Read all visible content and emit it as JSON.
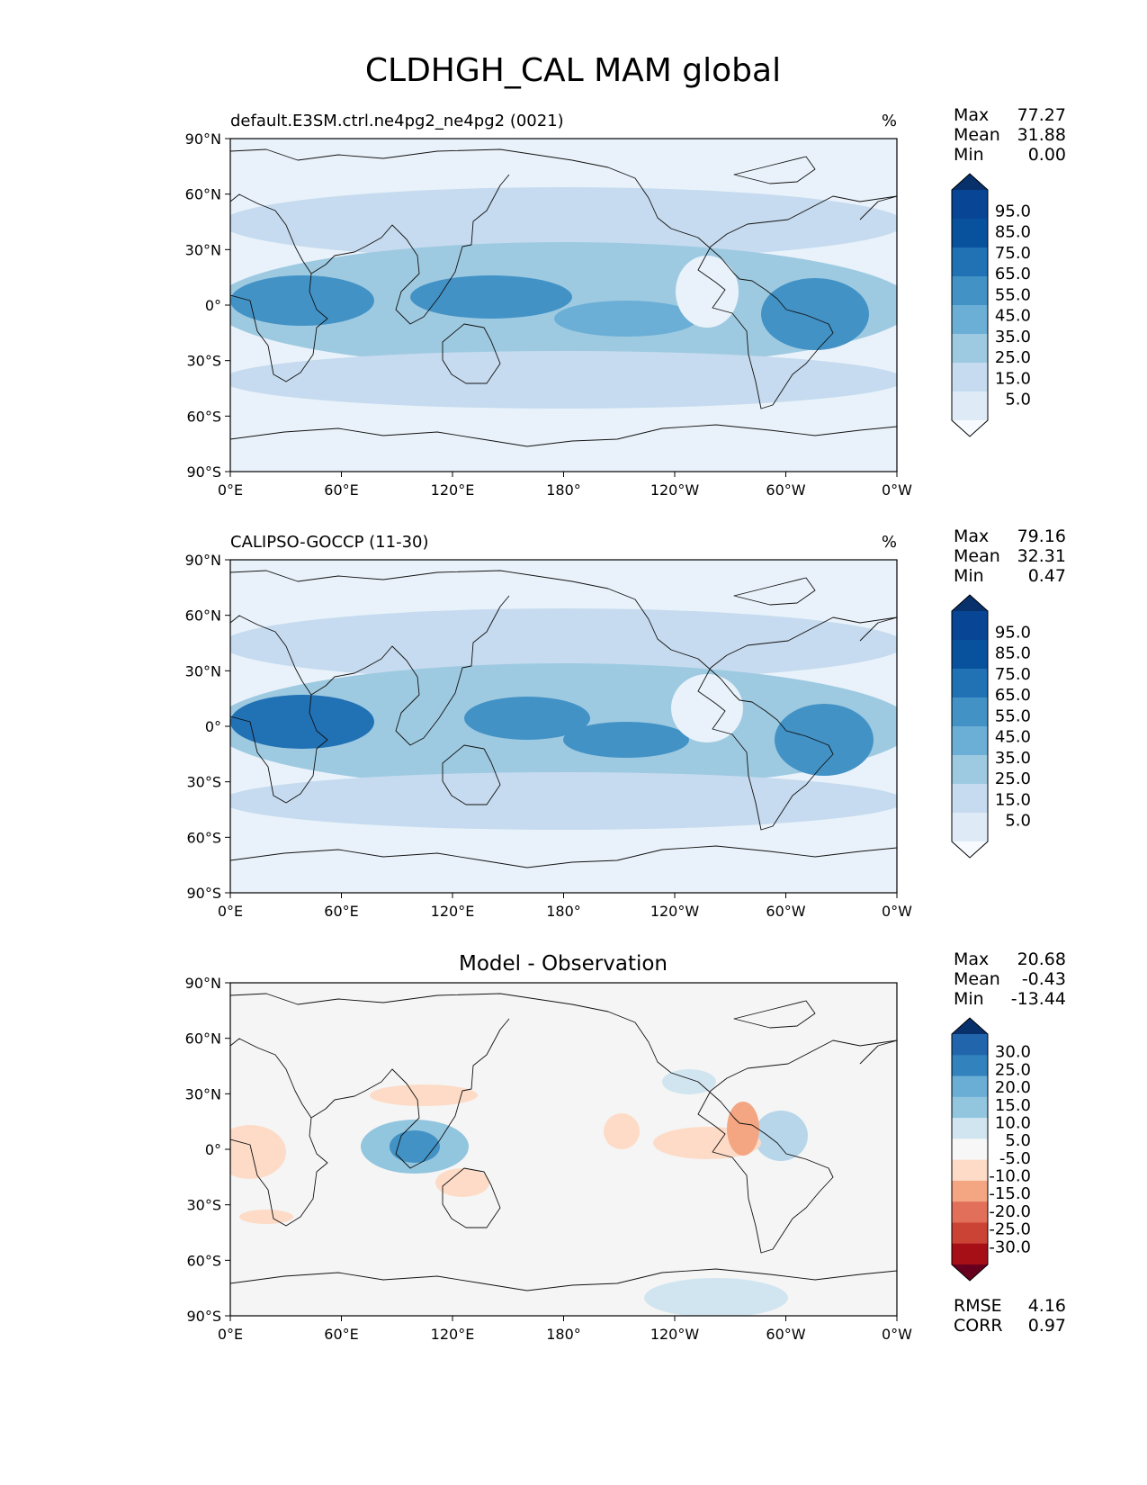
{
  "figure_title": "CLDHGH_CAL MAM global",
  "chart_data": [
    {
      "type": "heatmap",
      "projection": "global map (plate carree)",
      "title_left": "default.E3SM.ctrl.ne4pg2_ne4pg2 (0021)",
      "title_right": "%",
      "x_ticks": [
        "0°E",
        "60°E",
        "120°E",
        "180°",
        "120°W",
        "60°W",
        "0°W"
      ],
      "y_ticks": [
        "90°N",
        "60°N",
        "30°N",
        "0°",
        "30°S",
        "60°S",
        "90°S"
      ],
      "stats": [
        {
          "label": "Max",
          "value": "77.27"
        },
        {
          "label": "Mean",
          "value": "31.88"
        },
        {
          "label": "Min",
          "value": "0.00"
        }
      ],
      "colorbar": {
        "colors": [
          "#f7fbff",
          "#deebf7",
          "#c6dbef",
          "#9ecae1",
          "#6baed6",
          "#4292c6",
          "#2171b5",
          "#08519c",
          "#084594",
          "#08306b"
        ],
        "labels": [
          "95.0",
          "85.0",
          "75.0",
          "65.0",
          "55.0",
          "45.0",
          "35.0",
          "25.0",
          "15.0",
          "5.0"
        ]
      }
    },
    {
      "type": "heatmap",
      "projection": "global map (plate carree)",
      "title_left": "CALIPSO-GOCCP (11-30)",
      "title_right": "%",
      "x_ticks": [
        "0°E",
        "60°E",
        "120°E",
        "180°",
        "120°W",
        "60°W",
        "0°W"
      ],
      "y_ticks": [
        "90°N",
        "60°N",
        "30°N",
        "0°",
        "30°S",
        "60°S",
        "90°S"
      ],
      "stats": [
        {
          "label": "Max",
          "value": "79.16"
        },
        {
          "label": "Mean",
          "value": "32.31"
        },
        {
          "label": "Min",
          "value": "0.47"
        }
      ],
      "colorbar": {
        "colors": [
          "#f7fbff",
          "#deebf7",
          "#c6dbef",
          "#9ecae1",
          "#6baed6",
          "#4292c6",
          "#2171b5",
          "#08519c",
          "#084594",
          "#08306b"
        ],
        "labels": [
          "95.0",
          "85.0",
          "75.0",
          "65.0",
          "55.0",
          "45.0",
          "35.0",
          "25.0",
          "15.0",
          "5.0"
        ]
      }
    },
    {
      "type": "heatmap",
      "projection": "global map (plate carree)",
      "title_center": "Model - Observation",
      "x_ticks": [
        "0°E",
        "60°E",
        "120°E",
        "180°",
        "120°W",
        "60°W",
        "0°W"
      ],
      "y_ticks": [
        "90°N",
        "60°N",
        "30°N",
        "0°",
        "30°S",
        "60°S",
        "90°S"
      ],
      "stats": [
        {
          "label": "Max",
          "value": "20.68"
        },
        {
          "label": "Mean",
          "value": "-0.43"
        },
        {
          "label": "Min",
          "value": "-13.44"
        }
      ],
      "metrics": [
        {
          "label": "RMSE",
          "value": "4.16"
        },
        {
          "label": "CORR",
          "value": "0.97"
        }
      ],
      "colorbar": {
        "colors": [
          "#67001f",
          "#a50f15",
          "#cb4335",
          "#e26f5a",
          "#f4a582",
          "#fddbc7",
          "#f7f7f7",
          "#d1e5f0",
          "#92c5de",
          "#6aaed6",
          "#3182bd",
          "#2166ac",
          "#08306b"
        ],
        "labels": [
          "30.0",
          "25.0",
          "20.0",
          "15.0",
          "10.0",
          "5.0",
          "-5.0",
          "-10.0",
          "-15.0",
          "-20.0",
          "-25.0",
          "-30.0"
        ]
      }
    }
  ]
}
